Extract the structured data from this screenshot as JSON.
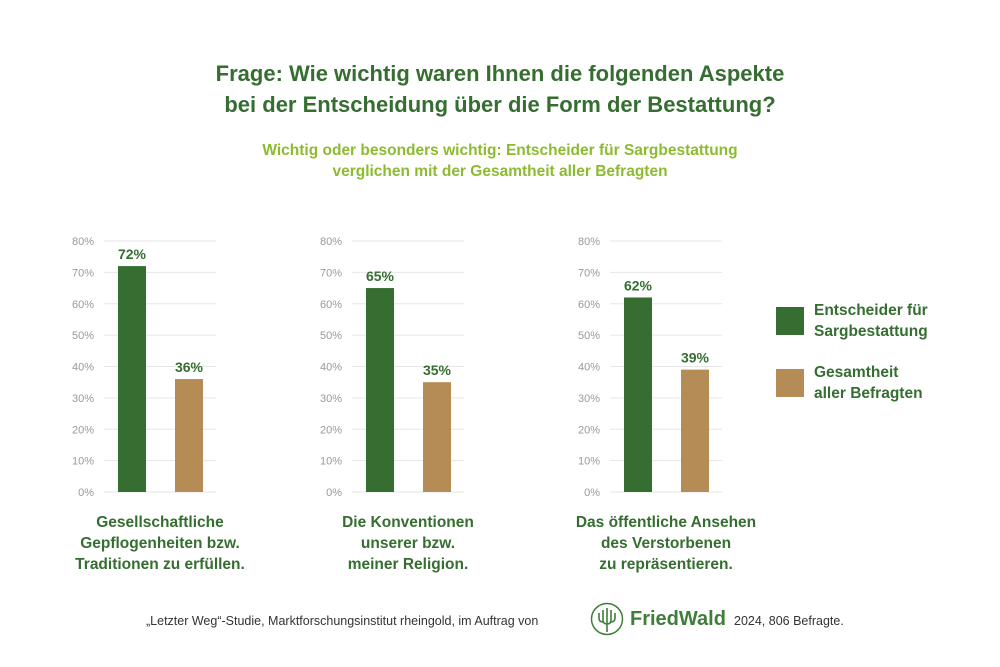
{
  "title": [
    "Frage: Wie wichtig waren Ihnen die folgenden Aspekte",
    "bei der Entscheidung über die Form der Bestattung?"
  ],
  "subtitle": [
    "Wichtig oder besonders wichtig: Entscheider für Sargbestattung",
    "verglichen mit der Gesamtheit aller Befragten"
  ],
  "colors": {
    "green": "#356e30",
    "tan": "#b58c55",
    "grid": "#e6e6e6",
    "tick": "#999999"
  },
  "chart_data": [
    {
      "type": "bar",
      "categories": [
        "Entscheider für Sargbestattung",
        "Gesamtheit aller Befragten"
      ],
      "values": [
        72,
        36
      ],
      "data_labels": [
        "72%",
        "36%"
      ],
      "xlabel": [
        "Gesellschaftliche",
        "Gepflogenheiten bzw.",
        "Traditionen zu erfüllen."
      ],
      "ylim": [
        0,
        80
      ],
      "yticks": [
        "0%",
        "10%",
        "20%",
        "30%",
        "40%",
        "50%",
        "60%",
        "70%",
        "80%"
      ],
      "grid": true
    },
    {
      "type": "bar",
      "categories": [
        "Entscheider für Sargbestattung",
        "Gesamtheit aller Befragten"
      ],
      "values": [
        65,
        35
      ],
      "data_labels": [
        "65%",
        "35%"
      ],
      "xlabel": [
        "Die Konventionen",
        "unserer bzw.",
        "meiner Religion."
      ],
      "ylim": [
        0,
        80
      ],
      "yticks": [
        "0%",
        "10%",
        "20%",
        "30%",
        "40%",
        "50%",
        "60%",
        "70%",
        "80%"
      ],
      "grid": true
    },
    {
      "type": "bar",
      "categories": [
        "Entscheider für Sargbestattung",
        "Gesamtheit aller Befragten"
      ],
      "values": [
        62,
        39
      ],
      "data_labels": [
        "62%",
        "39%"
      ],
      "xlabel": [
        "Das öffentliche Ansehen",
        "des Verstorbenen",
        "zu repräsentieren."
      ],
      "ylim": [
        0,
        80
      ],
      "yticks": [
        "0%",
        "10%",
        "20%",
        "30%",
        "40%",
        "50%",
        "60%",
        "70%",
        "80%"
      ],
      "grid": true
    }
  ],
  "legend": {
    "placement": "right",
    "items": [
      {
        "label": [
          "Entscheider für",
          "Sargbestattung"
        ],
        "color": "#356e30"
      },
      {
        "label": [
          "Gesamtheit",
          "aller Befragten"
        ],
        "color": "#b58c55"
      }
    ]
  },
  "footer": {
    "source": "„Letzter Weg“-Studie, Marktforschungsinstitut rheingold, im Auftrag von",
    "logo": "FriedWald",
    "note": "2024, 806 Befragte."
  }
}
